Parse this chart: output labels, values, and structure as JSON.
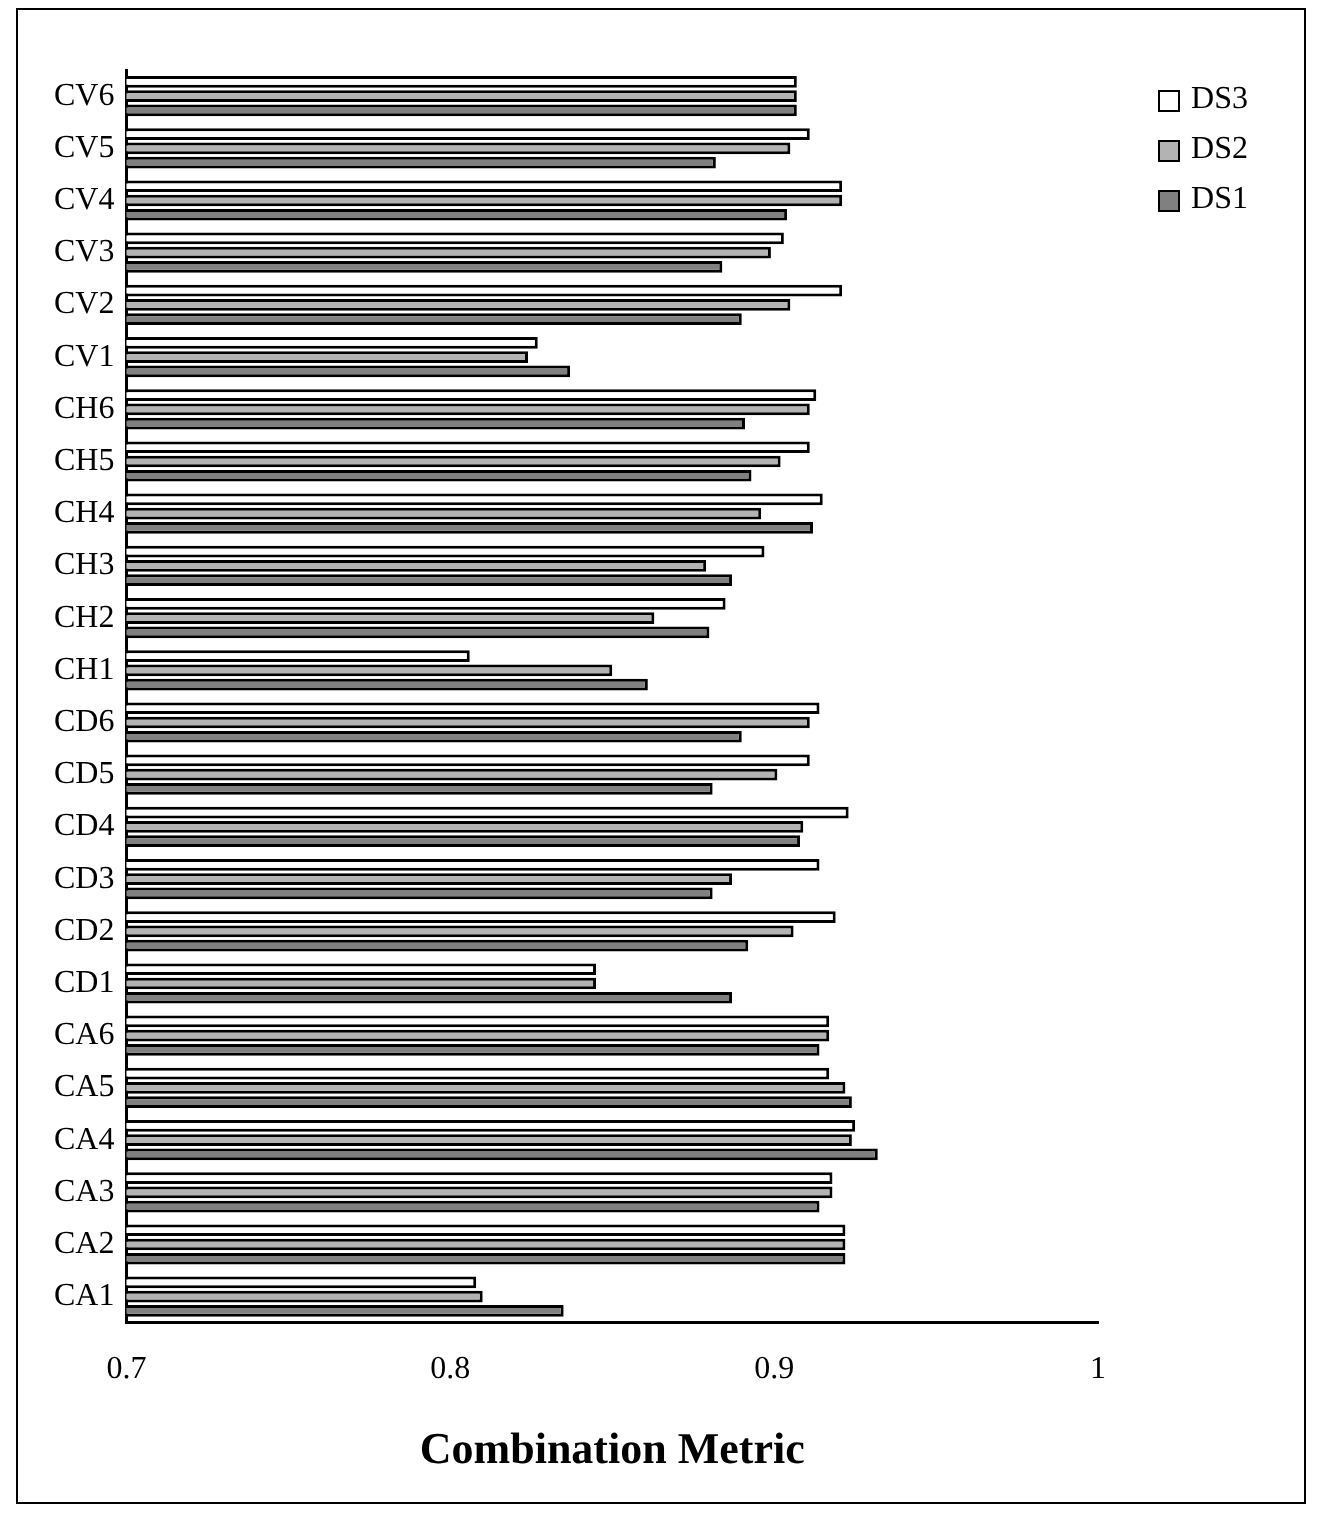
{
  "chart_data": {
    "type": "bar",
    "orientation": "horizontal",
    "xlabel": "Combination Metric",
    "categories": [
      "CV6",
      "CV5",
      "CV4",
      "CV3",
      "CV2",
      "CV1",
      "CH6",
      "CH5",
      "CH4",
      "CH3",
      "CH2",
      "CH1",
      "CD6",
      "CD5",
      "CD4",
      "CD3",
      "CD2",
      "CD1",
      "CA6",
      "CA5",
      "CA4",
      "CA3",
      "CA2",
      "CA1"
    ],
    "series": [
      {
        "name": "DS3",
        "color": "#ffffff",
        "values": [
          0.907,
          0.911,
          0.921,
          0.903,
          0.921,
          0.827,
          0.913,
          0.911,
          0.915,
          0.897,
          0.885,
          0.806,
          0.914,
          0.911,
          0.923,
          0.914,
          0.919,
          0.845,
          0.917,
          0.917,
          0.925,
          0.918,
          0.922,
          0.808
        ]
      },
      {
        "name": "DS2",
        "color": "#b3b3b3",
        "values": [
          0.907,
          0.905,
          0.921,
          0.899,
          0.905,
          0.824,
          0.911,
          0.902,
          0.896,
          0.879,
          0.863,
          0.85,
          0.911,
          0.901,
          0.909,
          0.887,
          0.906,
          0.845,
          0.917,
          0.922,
          0.924,
          0.918,
          0.922,
          0.81
        ]
      },
      {
        "name": "DS1",
        "color": "#808080",
        "values": [
          0.907,
          0.882,
          0.904,
          0.884,
          0.89,
          0.837,
          0.891,
          0.893,
          0.912,
          0.887,
          0.88,
          0.861,
          0.89,
          0.881,
          0.908,
          0.881,
          0.892,
          0.887,
          0.914,
          0.924,
          0.932,
          0.914,
          0.922,
          0.835
        ]
      }
    ],
    "xlim": [
      0.7,
      1
    ],
    "xticks": [
      0.7,
      0.8,
      0.9,
      1
    ],
    "grid": false,
    "legend": "top right"
  }
}
